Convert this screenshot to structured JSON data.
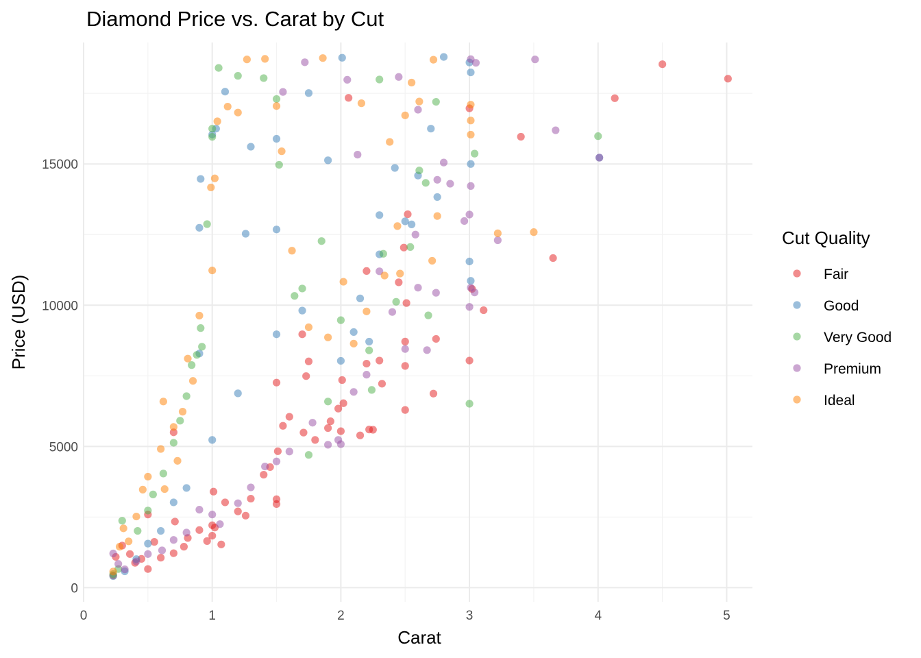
{
  "chart_data": {
    "type": "scatter",
    "title": "Diamond Price vs. Carat by Cut",
    "xlabel": "Carat",
    "ylabel": "Price (USD)",
    "xlim": [
      0,
      5.2
    ],
    "ylim": [
      -500,
      19300
    ],
    "x_ticks": [
      0,
      1,
      2,
      3,
      4,
      5
    ],
    "y_ticks": [
      0,
      5000,
      10000,
      15000
    ],
    "grid": true,
    "legend": {
      "title": "Cut Quality",
      "position": "right"
    },
    "point_alpha": 0.5,
    "series": [
      {
        "name": "Fair",
        "color": "#e41a1c",
        "points": [
          [
            5.01,
            18018
          ],
          [
            4.5,
            18531
          ],
          [
            4.13,
            17329
          ],
          [
            3.4,
            15964
          ],
          [
            3.65,
            11668
          ],
          [
            3.11,
            9823
          ],
          [
            3.02,
            10577
          ],
          [
            3.0,
            16970
          ],
          [
            3.0,
            8040
          ],
          [
            2.72,
            6870
          ],
          [
            2.74,
            8807
          ],
          [
            2.5,
            6291
          ],
          [
            2.5,
            7850
          ],
          [
            2.5,
            8711
          ],
          [
            2.51,
            10076
          ],
          [
            2.32,
            7220
          ],
          [
            2.22,
            5600
          ],
          [
            2.25,
            5590
          ],
          [
            2.15,
            5390
          ],
          [
            2.2,
            7930
          ],
          [
            2.01,
            7350
          ],
          [
            2.02,
            6530
          ],
          [
            2.0,
            5540
          ],
          [
            1.98,
            6340
          ],
          [
            1.92,
            5890
          ],
          [
            1.9,
            5650
          ],
          [
            1.8,
            5230
          ],
          [
            1.71,
            5490
          ],
          [
            1.6,
            6050
          ],
          [
            1.55,
            5730
          ],
          [
            1.51,
            4830
          ],
          [
            1.5,
            3130
          ],
          [
            1.5,
            7260
          ],
          [
            1.5,
            2960
          ],
          [
            1.45,
            4270
          ],
          [
            1.4,
            4000
          ],
          [
            1.3,
            3150
          ],
          [
            1.26,
            2550
          ],
          [
            1.2,
            2700
          ],
          [
            1.1,
            3020
          ],
          [
            1.07,
            1530
          ],
          [
            1.02,
            2130
          ],
          [
            1.0,
            1840
          ],
          [
            1.0,
            2210
          ],
          [
            1.01,
            3400
          ],
          [
            0.96,
            1650
          ],
          [
            0.9,
            2040
          ],
          [
            0.81,
            1760
          ],
          [
            0.78,
            1450
          ],
          [
            0.7,
            1220
          ],
          [
            0.7,
            5500
          ],
          [
            0.71,
            2340
          ],
          [
            0.6,
            1060
          ],
          [
            0.55,
            1620
          ],
          [
            0.5,
            2590
          ],
          [
            0.5,
            660
          ],
          [
            0.45,
            1020
          ],
          [
            0.4,
            880
          ],
          [
            0.36,
            1190
          ],
          [
            0.3,
            1490
          ],
          [
            0.25,
            1090
          ],
          [
            0.23,
            430
          ],
          [
            1.7,
            8970
          ],
          [
            1.75,
            8010
          ],
          [
            2.3,
            8040
          ],
          [
            2.06,
            17340
          ],
          [
            2.45,
            10810
          ],
          [
            2.52,
            13220
          ],
          [
            2.49,
            12040
          ],
          [
            2.2,
            11210
          ],
          [
            1.73,
            7490
          ]
        ]
      },
      {
        "name": "Good",
        "color": "#377eb8",
        "points": [
          [
            2.8,
            18788
          ],
          [
            3.01,
            18242
          ],
          [
            3.0,
            18593
          ],
          [
            4.01,
            15223
          ],
          [
            3.01,
            14999
          ],
          [
            3.0,
            11548
          ],
          [
            3.01,
            10863
          ],
          [
            2.7,
            16250
          ],
          [
            2.75,
            13830
          ],
          [
            2.6,
            14590
          ],
          [
            2.55,
            12860
          ],
          [
            2.5,
            12970
          ],
          [
            2.3,
            11800
          ],
          [
            2.1,
            9050
          ],
          [
            2.0,
            8030
          ],
          [
            1.9,
            15130
          ],
          [
            1.5,
            15890
          ],
          [
            1.5,
            12680
          ],
          [
            1.5,
            8970
          ],
          [
            1.3,
            15610
          ],
          [
            1.26,
            12530
          ],
          [
            1.1,
            17560
          ],
          [
            1.03,
            16250
          ],
          [
            1.0,
            16040
          ],
          [
            0.91,
            14470
          ],
          [
            0.9,
            12740
          ],
          [
            0.9,
            8290
          ],
          [
            1.0,
            5230
          ],
          [
            0.8,
            3530
          ],
          [
            0.7,
            3020
          ],
          [
            0.6,
            2010
          ],
          [
            0.5,
            1560
          ],
          [
            0.41,
            1010
          ],
          [
            0.32,
            580
          ],
          [
            0.23,
            410
          ],
          [
            1.2,
            6880
          ],
          [
            1.7,
            9810
          ],
          [
            2.22,
            8710
          ],
          [
            2.15,
            10240
          ],
          [
            2.3,
            13190
          ],
          [
            2.42,
            14860
          ],
          [
            2.01,
            18760
          ],
          [
            1.75,
            17510
          ]
        ]
      },
      {
        "name": "Very Good",
        "color": "#4daf4a",
        "points": [
          [
            4.0,
            15984
          ],
          [
            3.04,
            15366
          ],
          [
            3.0,
            6512
          ],
          [
            2.74,
            17200
          ],
          [
            2.66,
            14330
          ],
          [
            2.68,
            9640
          ],
          [
            2.54,
            12060
          ],
          [
            2.33,
            11820
          ],
          [
            2.22,
            8400
          ],
          [
            2.0,
            9470
          ],
          [
            1.85,
            12270
          ],
          [
            1.75,
            4700
          ],
          [
            1.7,
            10590
          ],
          [
            1.52,
            14970
          ],
          [
            1.5,
            17300
          ],
          [
            1.4,
            18040
          ],
          [
            1.2,
            18120
          ],
          [
            1.05,
            18400
          ],
          [
            1.0,
            16250
          ],
          [
            1.0,
            15960
          ],
          [
            0.96,
            12870
          ],
          [
            0.91,
            9190
          ],
          [
            0.88,
            8240
          ],
          [
            0.84,
            7880
          ],
          [
            0.8,
            6780
          ],
          [
            0.75,
            5910
          ],
          [
            0.7,
            5130
          ],
          [
            0.62,
            4040
          ],
          [
            0.54,
            3300
          ],
          [
            0.5,
            2730
          ],
          [
            0.42,
            2010
          ],
          [
            0.3,
            2370
          ],
          [
            0.27,
            660
          ],
          [
            0.23,
            480
          ],
          [
            0.92,
            8530
          ],
          [
            1.64,
            10330
          ],
          [
            1.9,
            6590
          ],
          [
            2.24,
            7000
          ],
          [
            2.43,
            10120
          ],
          [
            2.61,
            14770
          ],
          [
            2.3,
            17990
          ]
        ]
      },
      {
        "name": "Premium",
        "color": "#984ea3",
        "points": [
          [
            3.51,
            18701
          ],
          [
            3.01,
            18710
          ],
          [
            3.05,
            18580
          ],
          [
            3.67,
            16193
          ],
          [
            4.01,
            15223
          ],
          [
            3.01,
            14220
          ],
          [
            3.0,
            13210
          ],
          [
            3.22,
            12300
          ],
          [
            3.04,
            10452
          ],
          [
            3.01,
            10620
          ],
          [
            3.0,
            9940
          ],
          [
            2.8,
            15050
          ],
          [
            2.75,
            14440
          ],
          [
            2.74,
            10440
          ],
          [
            2.67,
            8410
          ],
          [
            2.6,
            10620
          ],
          [
            2.58,
            12500
          ],
          [
            2.5,
            8450
          ],
          [
            2.4,
            9760
          ],
          [
            2.3,
            11200
          ],
          [
            2.2,
            7540
          ],
          [
            2.1,
            6930
          ],
          [
            2.0,
            5080
          ],
          [
            1.98,
            5230
          ],
          [
            1.9,
            5060
          ],
          [
            1.78,
            5840
          ],
          [
            1.6,
            4820
          ],
          [
            1.5,
            4470
          ],
          [
            1.41,
            4290
          ],
          [
            1.3,
            3550
          ],
          [
            1.2,
            2990
          ],
          [
            1.06,
            2250
          ],
          [
            1.0,
            2590
          ],
          [
            0.9,
            2760
          ],
          [
            0.8,
            1950
          ],
          [
            0.7,
            1690
          ],
          [
            0.61,
            1320
          ],
          [
            0.5,
            1190
          ],
          [
            0.41,
            930
          ],
          [
            0.32,
            650
          ],
          [
            0.27,
            840
          ],
          [
            0.23,
            1210
          ],
          [
            2.05,
            17980
          ],
          [
            2.45,
            18080
          ],
          [
            2.6,
            16920
          ],
          [
            1.72,
            18600
          ],
          [
            1.55,
            17550
          ],
          [
            2.13,
            15330
          ],
          [
            2.85,
            14300
          ],
          [
            2.96,
            12980
          ]
        ]
      },
      {
        "name": "Ideal",
        "color": "#ff7f00",
        "points": [
          [
            3.5,
            12587
          ],
          [
            3.22,
            12545
          ],
          [
            2.75,
            13156
          ],
          [
            2.71,
            11573
          ],
          [
            3.01,
            16538
          ],
          [
            3.01,
            16038
          ],
          [
            3.01,
            17100
          ],
          [
            2.72,
            18690
          ],
          [
            2.61,
            17210
          ],
          [
            2.55,
            17880
          ],
          [
            2.5,
            16720
          ],
          [
            2.44,
            12800
          ],
          [
            2.34,
            11050
          ],
          [
            2.2,
            9780
          ],
          [
            2.1,
            8640
          ],
          [
            2.02,
            10830
          ],
          [
            1.9,
            8860
          ],
          [
            1.75,
            9220
          ],
          [
            1.62,
            11930
          ],
          [
            1.5,
            17050
          ],
          [
            1.41,
            18720
          ],
          [
            1.27,
            18700
          ],
          [
            1.2,
            16820
          ],
          [
            1.12,
            17030
          ],
          [
            1.04,
            16510
          ],
          [
            1.02,
            14490
          ],
          [
            1.0,
            11230
          ],
          [
            0.99,
            14170
          ],
          [
            0.9,
            9630
          ],
          [
            0.81,
            8110
          ],
          [
            0.77,
            6230
          ],
          [
            0.7,
            5690
          ],
          [
            0.62,
            6590
          ],
          [
            0.6,
            4910
          ],
          [
            0.5,
            3930
          ],
          [
            0.46,
            3470
          ],
          [
            0.41,
            2520
          ],
          [
            0.35,
            1640
          ],
          [
            0.31,
            2100
          ],
          [
            0.28,
            1450
          ],
          [
            0.23,
            570
          ],
          [
            0.63,
            3490
          ],
          [
            0.73,
            4490
          ],
          [
            0.85,
            7320
          ],
          [
            1.54,
            15450
          ],
          [
            1.86,
            18750
          ],
          [
            2.16,
            17150
          ],
          [
            2.38,
            15780
          ],
          [
            2.46,
            11120
          ]
        ]
      }
    ]
  }
}
